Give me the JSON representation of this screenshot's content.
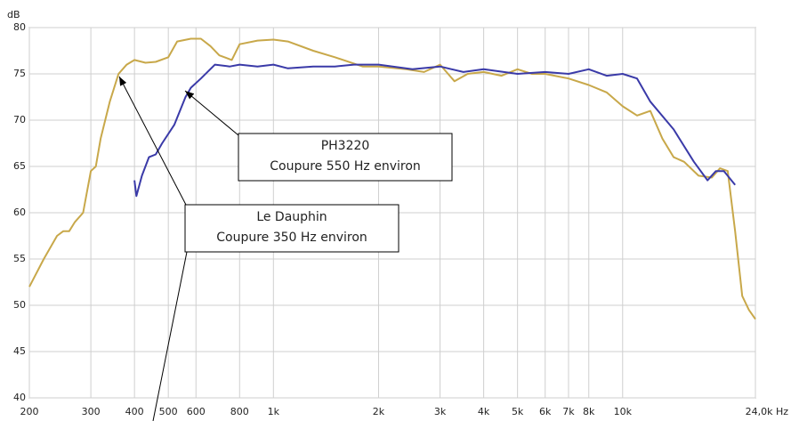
{
  "chart_data": {
    "type": "line",
    "log_x": true,
    "grid": true,
    "y_unit": "dB",
    "xlim": [
      200,
      24000
    ],
    "ylim": [
      40,
      80
    ],
    "yticks": [
      40,
      45,
      50,
      55,
      60,
      65,
      70,
      75,
      80
    ],
    "xticks": [
      200,
      300,
      400,
      500,
      600,
      800,
      {
        "value": 1000,
        "label": "1k"
      },
      {
        "value": 2000,
        "label": "2k"
      },
      {
        "value": 3000,
        "label": "3k"
      },
      {
        "value": 4000,
        "label": "4k"
      },
      {
        "value": 5000,
        "label": "5k"
      },
      {
        "value": 6000,
        "label": "6k"
      },
      {
        "value": 7000,
        "label": "7k"
      },
      {
        "value": 8000,
        "label": "8k"
      },
      {
        "value": 10000,
        "label": "10k"
      },
      {
        "value": 24000,
        "label": "24,0k Hz"
      }
    ],
    "series": [
      {
        "color": "#c8a84a",
        "x": [
          200,
          220,
          240,
          250,
          260,
          270,
          285,
          300,
          310,
          320,
          340,
          360,
          380,
          400,
          430,
          460,
          500,
          530,
          580,
          620,
          660,
          700,
          760,
          800,
          900,
          1000,
          1100,
          1300,
          1500,
          1800,
          2000,
          2400,
          2700,
          3000,
          3300,
          3600,
          4000,
          4500,
          5000,
          5500,
          6000,
          7000,
          8000,
          9000,
          10000,
          11000,
          12000,
          13000,
          14000,
          15000,
          16500,
          18000,
          19000,
          20000,
          21000,
          22000,
          23000,
          24000
        ],
        "values": [
          52,
          55,
          57.5,
          58,
          58,
          59,
          60,
          64.5,
          65,
          68,
          72,
          75,
          76,
          76.5,
          76.2,
          76.3,
          76.8,
          78.5,
          78.8,
          78.8,
          78,
          77,
          76.5,
          78.2,
          78.6,
          78.7,
          78.5,
          77.5,
          76.8,
          75.8,
          75.8,
          75.5,
          75.2,
          76,
          74.2,
          75,
          75.2,
          74.8,
          75.5,
          75,
          75,
          74.5,
          73.8,
          73,
          71.5,
          70.5,
          71,
          68,
          66,
          65.5,
          64,
          63.8,
          64.8,
          64.5,
          58,
          51,
          49.5,
          48.5
        ]
      },
      {
        "color": "#3a3aa8",
        "x": [
          400,
          405,
          420,
          440,
          460,
          480,
          520,
          560,
          580,
          620,
          680,
          750,
          800,
          900,
          1000,
          1100,
          1300,
          1500,
          1700,
          2000,
          2500,
          3000,
          3500,
          4000,
          5000,
          6000,
          7000,
          8000,
          9000,
          10000,
          11000,
          12000,
          14000,
          16000,
          17500,
          18500,
          19500,
          21000
        ],
        "values": [
          63.5,
          61.8,
          64,
          66,
          66.3,
          67.5,
          69.5,
          72.5,
          73.5,
          74.5,
          76,
          75.8,
          76,
          75.8,
          76,
          75.6,
          75.8,
          75.8,
          76,
          76,
          75.5,
          75.8,
          75.2,
          75.5,
          75,
          75.2,
          75,
          75.5,
          74.8,
          75,
          74.5,
          72,
          69,
          65.5,
          63.5,
          64.5,
          64.5,
          63
        ]
      }
    ],
    "annotations": [
      {
        "lines": [
          "PH3220",
          "Coupure 550 Hz environ"
        ]
      },
      {
        "lines": [
          "Le Dauphin",
          "Coupure 350 Hz environ"
        ]
      }
    ]
  }
}
